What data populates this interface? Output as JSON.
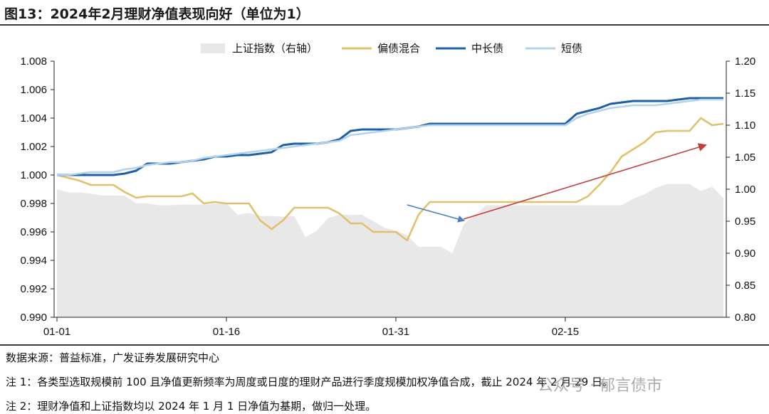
{
  "title": "图13：2024年2月理财净值表现向好（单位为1）",
  "notes": {
    "source": "数据来源：普益标准，广发证券发展研究中心",
    "note1": "注 1：各类型选取规模前 100 且净值更新频率为周度或日度的理财产品进行季度规模加权净值合成，截止 2024 年 2 月 29 日。",
    "note2": "注 2：理财净值和上证指数均以 2024 年 1 月 1 日净值为基期，做归一处理。"
  },
  "watermark": "公众号 · 郁言债市",
  "chart_data": {
    "type": "line",
    "x": [
      "01-01",
      "01-02",
      "01-03",
      "01-04",
      "01-05",
      "01-06",
      "01-07",
      "01-08",
      "01-09",
      "01-10",
      "01-11",
      "01-12",
      "01-13",
      "01-14",
      "01-15",
      "01-16",
      "01-17",
      "01-18",
      "01-19",
      "01-20",
      "01-21",
      "01-22",
      "01-23",
      "01-24",
      "01-25",
      "01-26",
      "01-27",
      "01-28",
      "01-29",
      "01-30",
      "01-31",
      "02-01",
      "02-02",
      "02-03",
      "02-04",
      "02-05",
      "02-06",
      "02-07",
      "02-08",
      "02-09",
      "02-10",
      "02-11",
      "02-12",
      "02-13",
      "02-14",
      "02-15",
      "02-16",
      "02-17",
      "02-18",
      "02-19",
      "02-20",
      "02-21",
      "02-22",
      "02-23",
      "02-24",
      "02-25",
      "02-26",
      "02-27",
      "02-28",
      "02-29"
    ],
    "x_tick_labels": [
      "01-01",
      "01-16",
      "01-31",
      "02-15"
    ],
    "y_left": {
      "min": 0.99,
      "max": 1.008,
      "step": 0.002,
      "tick_labels": [
        "0.990",
        "0.992",
        "0.994",
        "0.996",
        "0.998",
        "1.000",
        "1.002",
        "1.004",
        "1.006",
        "1.008"
      ]
    },
    "y_right": {
      "min": 0.8,
      "max": 1.2,
      "step": 0.05,
      "tick_labels": [
        "0.80",
        "0.85",
        "0.90",
        "0.95",
        "1.00",
        "1.05",
        "1.10",
        "1.15",
        "1.20"
      ]
    },
    "legend_position": "top-center",
    "series": [
      {
        "name": "上证指数（右轴）",
        "kind": "area",
        "axis": "right",
        "color": "#e8e8e8",
        "values": [
          1.0,
          0.995,
          0.995,
          0.993,
          0.99,
          0.99,
          0.99,
          0.978,
          0.978,
          0.975,
          0.975,
          0.976,
          0.976,
          0.976,
          0.977,
          0.978,
          0.96,
          0.963,
          0.958,
          0.958,
          0.957,
          0.958,
          0.925,
          0.935,
          0.955,
          0.96,
          0.96,
          0.96,
          0.95,
          0.94,
          0.935,
          0.928,
          0.91,
          0.91,
          0.91,
          0.9,
          0.945,
          0.96,
          0.975,
          0.975,
          0.975,
          0.975,
          0.975,
          0.975,
          0.975,
          0.975,
          0.975,
          0.975,
          0.975,
          0.975,
          0.975,
          0.985,
          0.992,
          1.002,
          1.008,
          1.008,
          1.008,
          0.997,
          1.004,
          0.986
        ]
      },
      {
        "name": "偏债混合",
        "kind": "line",
        "axis": "left",
        "color": "#e1c16e",
        "values": [
          1.0,
          0.9998,
          0.9996,
          0.9993,
          0.9993,
          0.9993,
          0.9988,
          0.9984,
          0.9985,
          0.9985,
          0.9985,
          0.9985,
          0.9987,
          0.998,
          0.9981,
          0.998,
          0.998,
          0.998,
          0.9968,
          0.9962,
          0.9968,
          0.9977,
          0.9977,
          0.9977,
          0.9977,
          0.9973,
          0.9966,
          0.9966,
          0.996,
          0.996,
          0.996,
          0.9954,
          0.9972,
          0.9981,
          0.9981,
          0.9981,
          0.9981,
          0.9981,
          0.9981,
          0.9981,
          0.9981,
          0.9981,
          0.9981,
          0.9981,
          0.9981,
          0.9981,
          0.9981,
          0.9985,
          0.9993,
          1.0002,
          1.0013,
          1.0018,
          1.0023,
          1.003,
          1.0031,
          1.0031,
          1.0031,
          1.004,
          1.0035,
          1.0036
        ]
      },
      {
        "name": "中长债",
        "kind": "line",
        "axis": "left",
        "color": "#1f5fa6",
        "values": [
          1.0,
          1.0,
          1.0,
          1.0,
          1.0,
          1.0,
          1.0001,
          1.0003,
          1.0008,
          1.0008,
          1.0008,
          1.0009,
          1.001,
          1.0011,
          1.0013,
          1.0013,
          1.0014,
          1.0014,
          1.0015,
          1.0016,
          1.0021,
          1.0022,
          1.0022,
          1.0022,
          1.0023,
          1.0025,
          1.0031,
          1.0032,
          1.0032,
          1.0032,
          1.0032,
          1.0033,
          1.0034,
          1.0036,
          1.0036,
          1.0036,
          1.0036,
          1.0036,
          1.0036,
          1.0036,
          1.0036,
          1.0036,
          1.0036,
          1.0036,
          1.0036,
          1.0036,
          1.0043,
          1.0045,
          1.0047,
          1.005,
          1.0051,
          1.0052,
          1.0052,
          1.0052,
          1.0052,
          1.0053,
          1.0054,
          1.0054,
          1.0054,
          1.0054
        ]
      },
      {
        "name": "短债",
        "kind": "line",
        "axis": "left",
        "color": "#b4d3ec",
        "values": [
          1.0,
          1.0,
          1.0001,
          1.0002,
          1.0002,
          1.0002,
          1.0004,
          1.0005,
          1.0007,
          1.0008,
          1.0009,
          1.0009,
          1.001,
          1.0012,
          1.0013,
          1.0014,
          1.0015,
          1.0016,
          1.0017,
          1.0018,
          1.0019,
          1.002,
          1.0021,
          1.0022,
          1.0023,
          1.0024,
          1.0028,
          1.0029,
          1.003,
          1.0031,
          1.0032,
          1.0033,
          1.0034,
          1.0035,
          1.0035,
          1.0035,
          1.0035,
          1.0035,
          1.0035,
          1.0035,
          1.0035,
          1.0035,
          1.0035,
          1.0035,
          1.0035,
          1.0035,
          1.004,
          1.0043,
          1.0045,
          1.0047,
          1.0048,
          1.0049,
          1.0049,
          1.0049,
          1.005,
          1.0051,
          1.0052,
          1.0053,
          1.0053,
          1.0053
        ]
      }
    ],
    "annotations": [
      {
        "name": "down-arrow",
        "color": "#4a7fc1",
        "from": {
          "x": "02-01",
          "y": 0.9979
        },
        "to": {
          "x": "02-06",
          "y": 0.9968
        }
      },
      {
        "name": "up-arrow",
        "color": "#c0403a",
        "from": {
          "x": "02-06",
          "y": 0.9969
        },
        "to": {
          "x": "02-29",
          "y": 1.0021
        }
      }
    ]
  }
}
